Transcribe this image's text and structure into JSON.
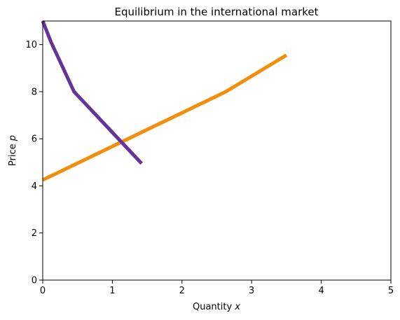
{
  "chart_data": {
    "type": "line",
    "title": "Equilibrium in the international market",
    "xlabel_prefix": "Quantity ",
    "xlabel_var": "x",
    "ylabel_prefix": "Price ",
    "ylabel_var": "p",
    "xlim": [
      0,
      5
    ],
    "ylim": [
      0,
      11
    ],
    "x_ticks": [
      "0",
      "1",
      "2",
      "3",
      "4",
      "5"
    ],
    "y_ticks": [
      "0",
      "2",
      "4",
      "6",
      "8",
      "10"
    ],
    "grid": false,
    "legend": "none",
    "series": [
      {
        "color": "#f28e0a",
        "points": [
          [
            0,
            4.25
          ],
          [
            2.63,
            8.0
          ],
          [
            3.5,
            9.55
          ]
        ]
      },
      {
        "color": "#663399",
        "points": [
          [
            0,
            11.0
          ],
          [
            0.12,
            10.1
          ],
          [
            0.45,
            8.0
          ],
          [
            1.42,
            4.95
          ]
        ]
      }
    ]
  }
}
